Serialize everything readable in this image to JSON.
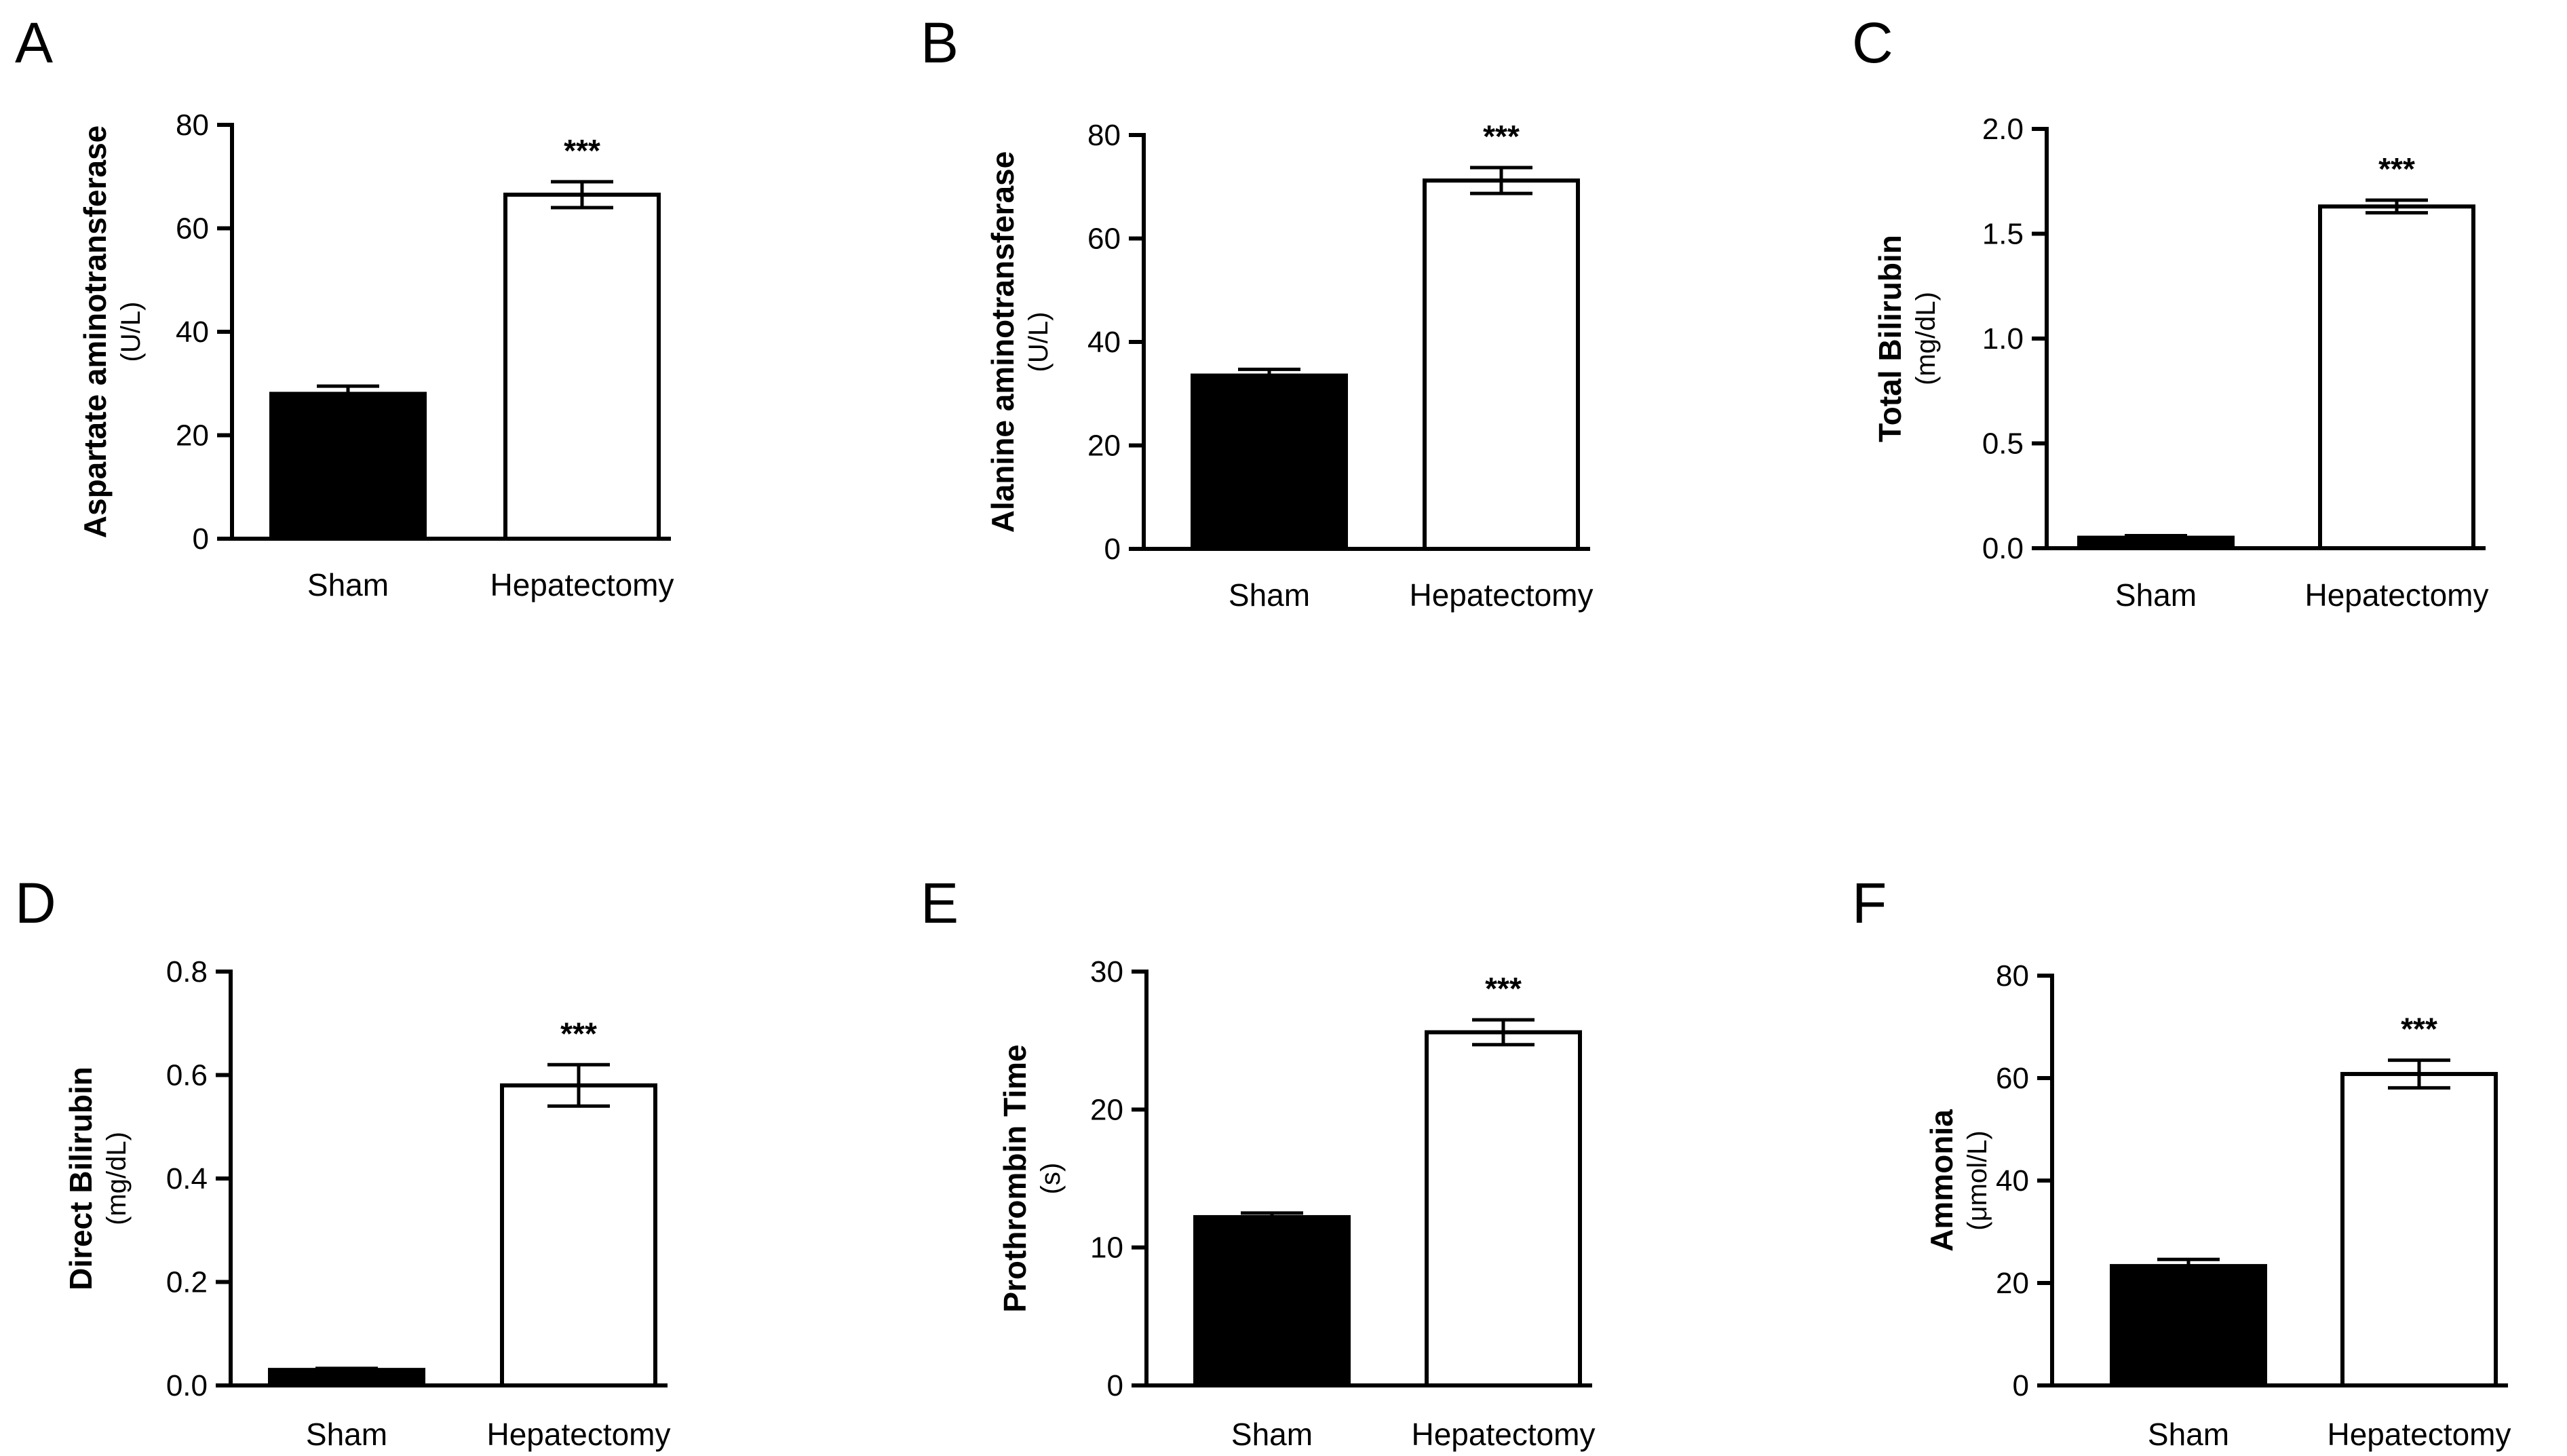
{
  "chart_data": [
    {
      "type": "bar",
      "panel": "A",
      "ylabel": "Aspartate aminotransferase",
      "yunit": "(U/L)",
      "categories": [
        "Sham",
        "Hepatectomy"
      ],
      "values": [
        28,
        66.5
      ],
      "errors": [
        1.5,
        2.5
      ],
      "significance": [
        "",
        "***"
      ],
      "ylim": [
        0,
        80
      ],
      "yticks": [
        0,
        20,
        40,
        60,
        80
      ],
      "ytick_labels": [
        "0",
        "20",
        "40",
        "60",
        "80"
      ],
      "colors": [
        "#000000",
        "#ffffff"
      ]
    },
    {
      "type": "bar",
      "panel": "B",
      "ylabel": "Alanine aminotransferase",
      "yunit": "(U/L)",
      "categories": [
        "Sham",
        "Hepatectomy"
      ],
      "values": [
        33.5,
        71.2
      ],
      "errors": [
        1.2,
        2.5
      ],
      "significance": [
        "",
        "***"
      ],
      "ylim": [
        0,
        80
      ],
      "yticks": [
        0,
        20,
        40,
        60,
        80
      ],
      "ytick_labels": [
        "0",
        "20",
        "40",
        "60",
        "80"
      ],
      "colors": [
        "#000000",
        "#ffffff"
      ]
    },
    {
      "type": "bar",
      "panel": "C",
      "ylabel": "Total Bilirubin",
      "yunit": "(mg/dL)",
      "categories": [
        "Sham",
        "Hepatectomy"
      ],
      "values": [
        0.05,
        1.63
      ],
      "errors": [
        0.01,
        0.03
      ],
      "significance": [
        "",
        "***"
      ],
      "ylim": [
        0,
        2.0
      ],
      "yticks": [
        0,
        0.5,
        1.0,
        1.5,
        2.0
      ],
      "ytick_labels": [
        "0.0",
        "0.5",
        "1.0",
        "1.5",
        "2.0"
      ],
      "colors": [
        "#000000",
        "#ffffff"
      ]
    },
    {
      "type": "bar",
      "panel": "D",
      "ylabel": "Direct Bilirubin",
      "yunit": "(mg/dL)",
      "categories": [
        "Sham",
        "Hepatectomy"
      ],
      "values": [
        0.03,
        0.58
      ],
      "errors": [
        0.003,
        0.04
      ],
      "significance": [
        "",
        "***"
      ],
      "ylim": [
        0,
        0.8
      ],
      "yticks": [
        0,
        0.2,
        0.4,
        0.6,
        0.8
      ],
      "ytick_labels": [
        "0.0",
        "0.2",
        "0.4",
        "0.6",
        "0.8"
      ],
      "colors": [
        "#000000",
        "#ffffff"
      ]
    },
    {
      "type": "bar",
      "panel": "E",
      "ylabel": "Prothrombin Time",
      "yunit": "(s)",
      "categories": [
        "Sham",
        "Hepatectomy"
      ],
      "values": [
        12.2,
        25.6
      ],
      "errors": [
        0.3,
        0.9
      ],
      "significance": [
        "",
        "***"
      ],
      "ylim": [
        0,
        30
      ],
      "yticks": [
        0,
        10,
        20,
        30
      ],
      "ytick_labels": [
        "0",
        "10",
        "20",
        "30"
      ],
      "colors": [
        "#000000",
        "#ffffff"
      ]
    },
    {
      "type": "bar",
      "panel": "F",
      "ylabel": "Ammonia",
      "yunit": "(μmol/L)",
      "categories": [
        "Sham",
        "Hepatectomy"
      ],
      "values": [
        23.3,
        60.8
      ],
      "errors": [
        1.3,
        2.7
      ],
      "significance": [
        "",
        "***"
      ],
      "ylim": [
        0,
        80
      ],
      "yticks": [
        0,
        20,
        40,
        60,
        80
      ],
      "ytick_labels": [
        "0",
        "20",
        "40",
        "60",
        "80"
      ],
      "colors": [
        "#000000",
        "#ffffff"
      ]
    }
  ]
}
